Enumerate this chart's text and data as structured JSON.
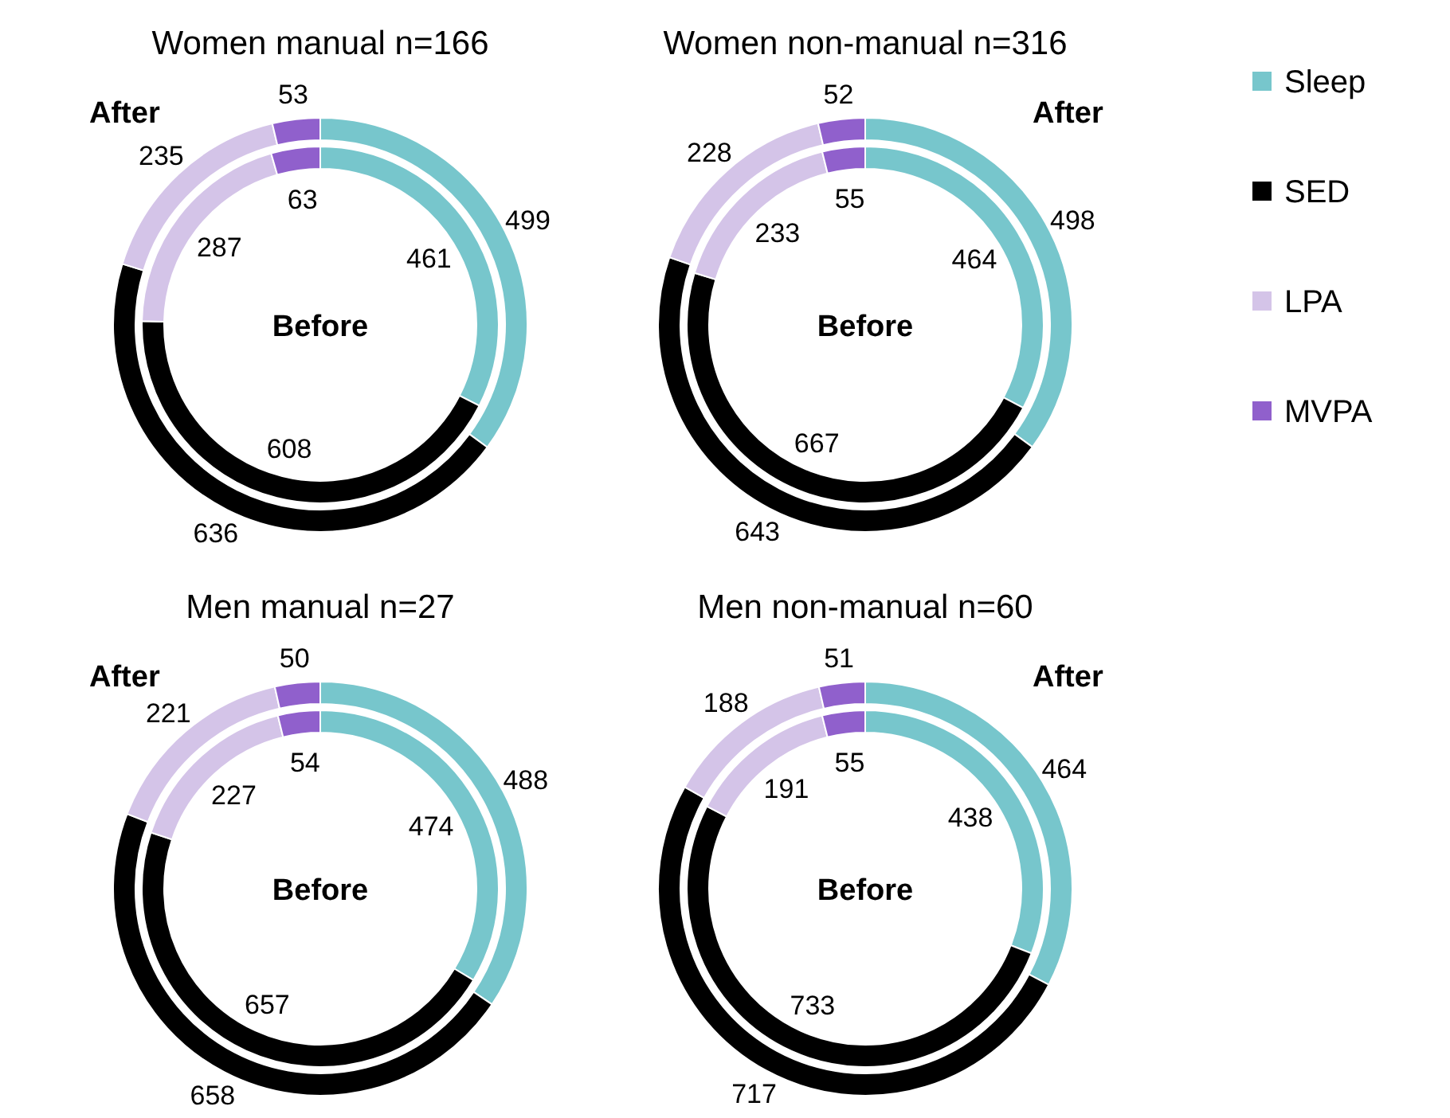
{
  "chart_data": [
    {
      "type": "donut",
      "title": "Women manual n=166",
      "categories": [
        null,
        null,
        null,
        null
      ],
      "colors": [
        "#77c6cc",
        "#000000",
        "#d4c4e8",
        "#9060cc"
      ],
      "data_labels": true,
      "series": [
        {
          "name": "After",
          "values": [
            499,
            636,
            235,
            53
          ]
        },
        {
          "name": "Before",
          "values": [
            461,
            608,
            287,
            63
          ]
        }
      ]
    },
    {
      "type": "donut",
      "title": "Women non-manual n=316",
      "categories": [
        "Sleep",
        "SED",
        "LPA",
        "MVPA"
      ],
      "colors": [
        "#77c6cc",
        "#000000",
        "#d4c4e8",
        "#9060cc"
      ],
      "data_labels": true,
      "legend": "right",
      "series": [
        {
          "name": "After",
          "values": [
            498,
            643,
            228,
            52
          ]
        },
        {
          "name": "Before",
          "values": [
            464,
            667,
            233,
            55
          ]
        }
      ]
    },
    {
      "type": "donut",
      "title": "Men manual n=27",
      "categories": [
        null,
        null,
        null,
        null
      ],
      "colors": [
        "#77c6cc",
        "#000000",
        "#d4c4e8",
        "#9060cc"
      ],
      "data_labels": true,
      "series": [
        {
          "name": "After",
          "values": [
            488,
            658,
            221,
            50
          ]
        },
        {
          "name": "Before",
          "values": [
            474,
            657,
            227,
            54
          ]
        }
      ]
    },
    {
      "type": "donut",
      "title": "Men non-manual n=60",
      "categories": [
        null,
        null,
        null,
        null
      ],
      "colors": [
        "#77c6cc",
        "#000000",
        "#d4c4e8",
        "#9060cc"
      ],
      "data_labels": true,
      "series": [
        {
          "name": "After",
          "values": [
            464,
            717,
            188,
            51
          ]
        },
        {
          "name": "Before",
          "values": [
            438,
            733,
            191,
            55
          ]
        }
      ]
    }
  ]
}
